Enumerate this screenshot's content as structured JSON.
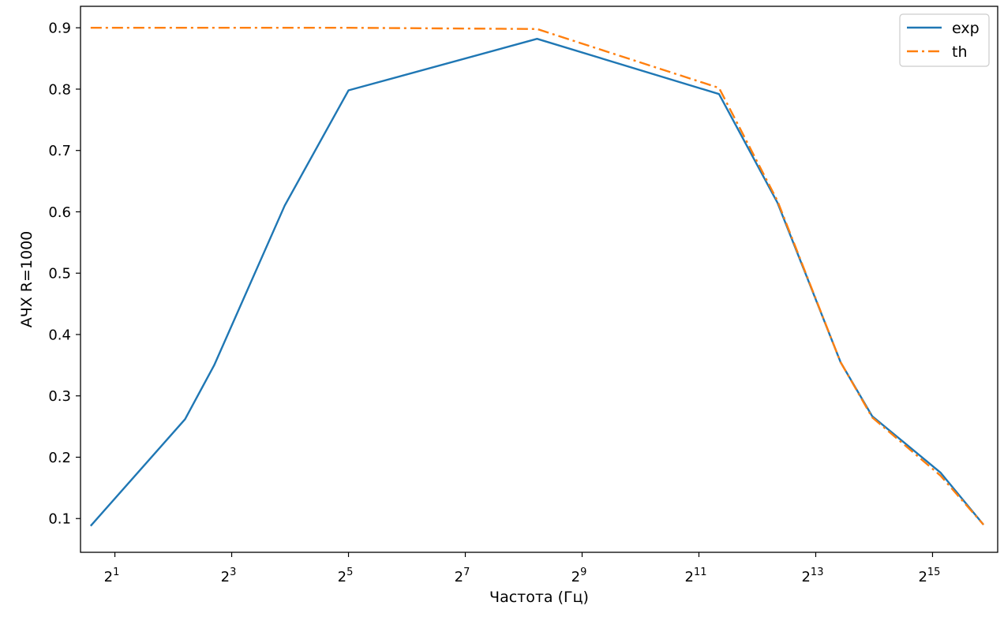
{
  "chart_data": {
    "type": "line",
    "xlabel": "Частота (Гц)",
    "ylabel": "АЧХ R=1000",
    "x_scale": "log2",
    "xlim": [
      1.33,
      71000
    ],
    "ylim": [
      0.045,
      0.935
    ],
    "x_ticks": [
      {
        "base": "2",
        "exp": "1",
        "value": 2
      },
      {
        "base": "2",
        "exp": "3",
        "value": 8
      },
      {
        "base": "2",
        "exp": "5",
        "value": 32
      },
      {
        "base": "2",
        "exp": "7",
        "value": 128
      },
      {
        "base": "2",
        "exp": "9",
        "value": 512
      },
      {
        "base": "2",
        "exp": "11",
        "value": 2048
      },
      {
        "base": "2",
        "exp": "13",
        "value": 8192
      },
      {
        "base": "2",
        "exp": "15",
        "value": 32768
      }
    ],
    "y_ticks": [
      {
        "label": "0.1",
        "value": 0.1
      },
      {
        "label": "0.2",
        "value": 0.2
      },
      {
        "label": "0.3",
        "value": 0.3
      },
      {
        "label": "0.4",
        "value": 0.4
      },
      {
        "label": "0.5",
        "value": 0.5
      },
      {
        "label": "0.6",
        "value": 0.6
      },
      {
        "label": "0.7",
        "value": 0.7
      },
      {
        "label": "0.8",
        "value": 0.8
      },
      {
        "label": "0.9",
        "value": 0.9
      }
    ],
    "grid": false,
    "legend_position": "top-right",
    "series": [
      {
        "name": "exp",
        "color": "#1f77b4",
        "style": "solid",
        "x": [
          1.5,
          4.6,
          6.5,
          15,
          32,
          300,
          2600,
          5200,
          11000,
          16000,
          36000,
          60000
        ],
        "y": [
          0.088,
          0.262,
          0.35,
          0.61,
          0.798,
          0.882,
          0.792,
          0.615,
          0.355,
          0.267,
          0.175,
          0.09
        ]
      },
      {
        "name": "th",
        "color": "#ff7f0e",
        "style": "dashdot",
        "x": [
          1.5,
          32,
          300,
          2600,
          5200,
          11000,
          16000,
          36000,
          60000
        ],
        "y": [
          0.9,
          0.9,
          0.898,
          0.802,
          0.618,
          0.355,
          0.265,
          0.17,
          0.09
        ]
      }
    ]
  }
}
